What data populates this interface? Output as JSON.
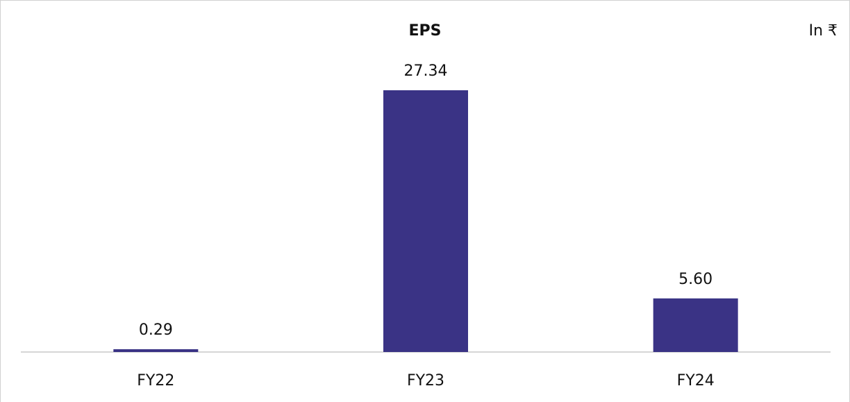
{
  "chart_data": {
    "type": "bar",
    "title": "EPS",
    "unit_note": "In ₹",
    "categories": [
      "FY22",
      "FY23",
      "FY24"
    ],
    "values": [
      0.29,
      27.34,
      5.6
    ],
    "value_labels": [
      "0.29",
      "27.34",
      "5.60"
    ],
    "color": "#3a3385"
  }
}
